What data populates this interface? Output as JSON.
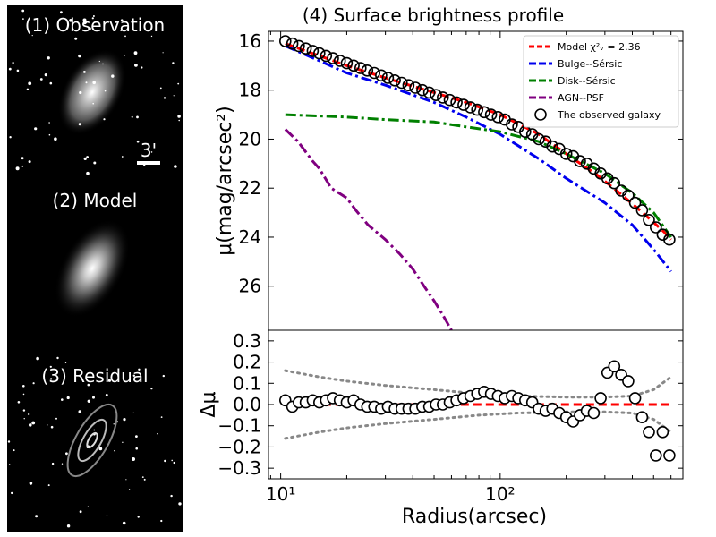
{
  "panels": {
    "observation_title": "(1) Observation",
    "scale_bar_label": "3'",
    "model_title": "(2) Model",
    "residual_title": "(3) Residual"
  },
  "colors": {
    "model": "#ff0000",
    "bulge": "#0000ee",
    "disk": "#008000",
    "agn": "#800080",
    "residual_band": "#888888"
  },
  "chart_data": [
    {
      "type": "line",
      "title": "(4) Surface brightness profile",
      "ylabel": "μ(mag/arcsec²)",
      "xscale": "log",
      "xlim": [
        8.8,
        680
      ],
      "ylim": [
        27.8,
        15.6
      ],
      "yticks": [
        16,
        18,
        20,
        22,
        24,
        26
      ],
      "ytick_labels": [
        "16",
        "18",
        "20",
        "22",
        "24",
        "26"
      ],
      "legend_position": "top-right",
      "legend": [
        "Model χ²ᵥ = 2.36",
        "Bulge--Sérsic",
        "Disk--Sérsic",
        "AGN--PSF",
        "The observed galaxy"
      ],
      "series": [
        {
          "name": "Model χ²ᵥ = 2.36",
          "style": "dashed",
          "x": [
            10.5,
            15,
            20,
            30,
            50,
            70,
            100,
            150,
            200,
            280,
            350,
            420,
            500,
            560,
            600
          ],
          "y": [
            16.1,
            16.6,
            17.0,
            17.5,
            18.1,
            18.5,
            19.0,
            19.8,
            20.6,
            21.5,
            22.2,
            22.8,
            23.4,
            23.8,
            24.1
          ]
        },
        {
          "name": "Bulge--Sérsic",
          "style": "dashdot",
          "x": [
            10.5,
            15,
            20,
            30,
            50,
            70,
            100,
            150,
            200,
            300,
            400,
            500,
            600
          ],
          "y": [
            16.2,
            16.8,
            17.3,
            17.8,
            18.5,
            19.1,
            19.8,
            20.8,
            21.6,
            22.6,
            23.5,
            24.5,
            25.4
          ]
        },
        {
          "name": "Disk--Sérsic",
          "style": "dashdot",
          "x": [
            10.5,
            20,
            30,
            50,
            70,
            100,
            150,
            200,
            300,
            400,
            500,
            600
          ],
          "y": [
            19.0,
            19.1,
            19.2,
            19.3,
            19.5,
            19.7,
            20.1,
            20.6,
            21.4,
            22.2,
            23.0,
            24.0
          ]
        },
        {
          "name": "AGN--PSF",
          "style": "dashdot",
          "x": [
            10.5,
            12,
            14,
            15,
            17,
            20,
            22,
            25,
            30,
            35,
            40,
            45,
            50,
            55,
            60
          ],
          "y": [
            19.6,
            20.1,
            20.9,
            21.2,
            22.0,
            22.4,
            22.9,
            23.5,
            24.1,
            24.7,
            25.3,
            26.0,
            26.6,
            27.2,
            27.8
          ]
        },
        {
          "name": "The observed galaxy",
          "style": "markers",
          "x": [
            10.5,
            11.3,
            12.1,
            13,
            14,
            15,
            16.1,
            17.3,
            18.6,
            20,
            21.5,
            23.1,
            24.8,
            26.7,
            28.7,
            30.8,
            33.1,
            35.6,
            38.2,
            41.1,
            44.2,
            47.5,
            51,
            54.8,
            58.9,
            63.3,
            68.1,
            73.2,
            78.6,
            84.5,
            90.8,
            97.6,
            105,
            113,
            121,
            130,
            140,
            150,
            161,
            173,
            186,
            200,
            215,
            231,
            248,
            267,
            287,
            308,
            331,
            356,
            383,
            412,
            443,
            476,
            512,
            550,
            590
          ],
          "y": [
            16.0,
            16.1,
            16.2,
            16.3,
            16.4,
            16.5,
            16.6,
            16.7,
            16.8,
            16.9,
            17.0,
            17.1,
            17.2,
            17.3,
            17.4,
            17.5,
            17.6,
            17.7,
            17.8,
            17.9,
            18.0,
            18.1,
            18.2,
            18.3,
            18.4,
            18.5,
            18.6,
            18.7,
            18.8,
            18.9,
            19.0,
            19.1,
            19.2,
            19.4,
            19.5,
            19.7,
            19.8,
            20.0,
            20.1,
            20.3,
            20.4,
            20.6,
            20.7,
            20.9,
            21.0,
            21.2,
            21.4,
            21.6,
            21.8,
            22.1,
            22.3,
            22.6,
            22.9,
            23.3,
            23.6,
            23.9,
            24.1
          ]
        }
      ]
    },
    {
      "type": "scatter",
      "xlabel": "Radius(arcsec)",
      "ylabel": "Δμ",
      "xscale": "log",
      "xlim": [
        8.8,
        680
      ],
      "ylim": [
        -0.35,
        0.35
      ],
      "yticks": [
        0.3,
        0.2,
        0.1,
        0.0,
        -0.1,
        -0.2,
        -0.3
      ],
      "ytick_labels": [
        "0.3",
        "0.2",
        "0.1",
        "0.0",
        "−0.1",
        "−0.2",
        "−0.3"
      ],
      "xticks": [
        10,
        100
      ],
      "xtick_labels": [
        "10¹",
        "10²"
      ],
      "series": [
        {
          "name": "residuals",
          "x": [
            10.5,
            11.3,
            12.1,
            13,
            14,
            15,
            16.1,
            17.3,
            18.6,
            20,
            21.5,
            23.1,
            24.8,
            26.7,
            28.7,
            30.8,
            33.1,
            35.6,
            38.2,
            41.1,
            44.2,
            47.5,
            51,
            54.8,
            58.9,
            63.3,
            68.1,
            73.2,
            78.6,
            84.5,
            90.8,
            97.6,
            105,
            113,
            121,
            130,
            140,
            150,
            161,
            173,
            186,
            200,
            215,
            231,
            248,
            267,
            287,
            308,
            331,
            356,
            383,
            412,
            443,
            476,
            512,
            550,
            590
          ],
          "y": [
            0.02,
            -0.01,
            0.01,
            0.01,
            0.02,
            0.01,
            0.02,
            0.03,
            0.02,
            0.01,
            0.02,
            0.0,
            -0.01,
            -0.01,
            -0.02,
            -0.01,
            -0.02,
            -0.02,
            -0.02,
            -0.02,
            -0.01,
            -0.01,
            0.0,
            0.0,
            0.01,
            0.02,
            0.03,
            0.04,
            0.05,
            0.06,
            0.05,
            0.04,
            0.03,
            0.04,
            0.03,
            0.02,
            0.01,
            -0.02,
            -0.03,
            -0.02,
            -0.04,
            -0.06,
            -0.08,
            -0.05,
            -0.03,
            -0.04,
            0.03,
            0.15,
            0.18,
            0.14,
            0.11,
            0.03,
            -0.06,
            -0.13,
            -0.24,
            -0.13,
            -0.24
          ]
        }
      ],
      "bands": {
        "upper_x": [
          10.5,
          15,
          20,
          30,
          50,
          80,
          120,
          200,
          300,
          400,
          500,
          600
        ],
        "upper_y": [
          0.16,
          0.13,
          0.11,
          0.09,
          0.07,
          0.05,
          0.04,
          0.035,
          0.035,
          0.04,
          0.07,
          0.13
        ],
        "lower_x": [
          10.5,
          15,
          20,
          30,
          50,
          80,
          120,
          200,
          300,
          400,
          500,
          600
        ],
        "lower_y": [
          -0.16,
          -0.13,
          -0.11,
          -0.09,
          -0.07,
          -0.05,
          -0.04,
          -0.035,
          -0.035,
          -0.04,
          -0.07,
          -0.13
        ]
      }
    }
  ]
}
